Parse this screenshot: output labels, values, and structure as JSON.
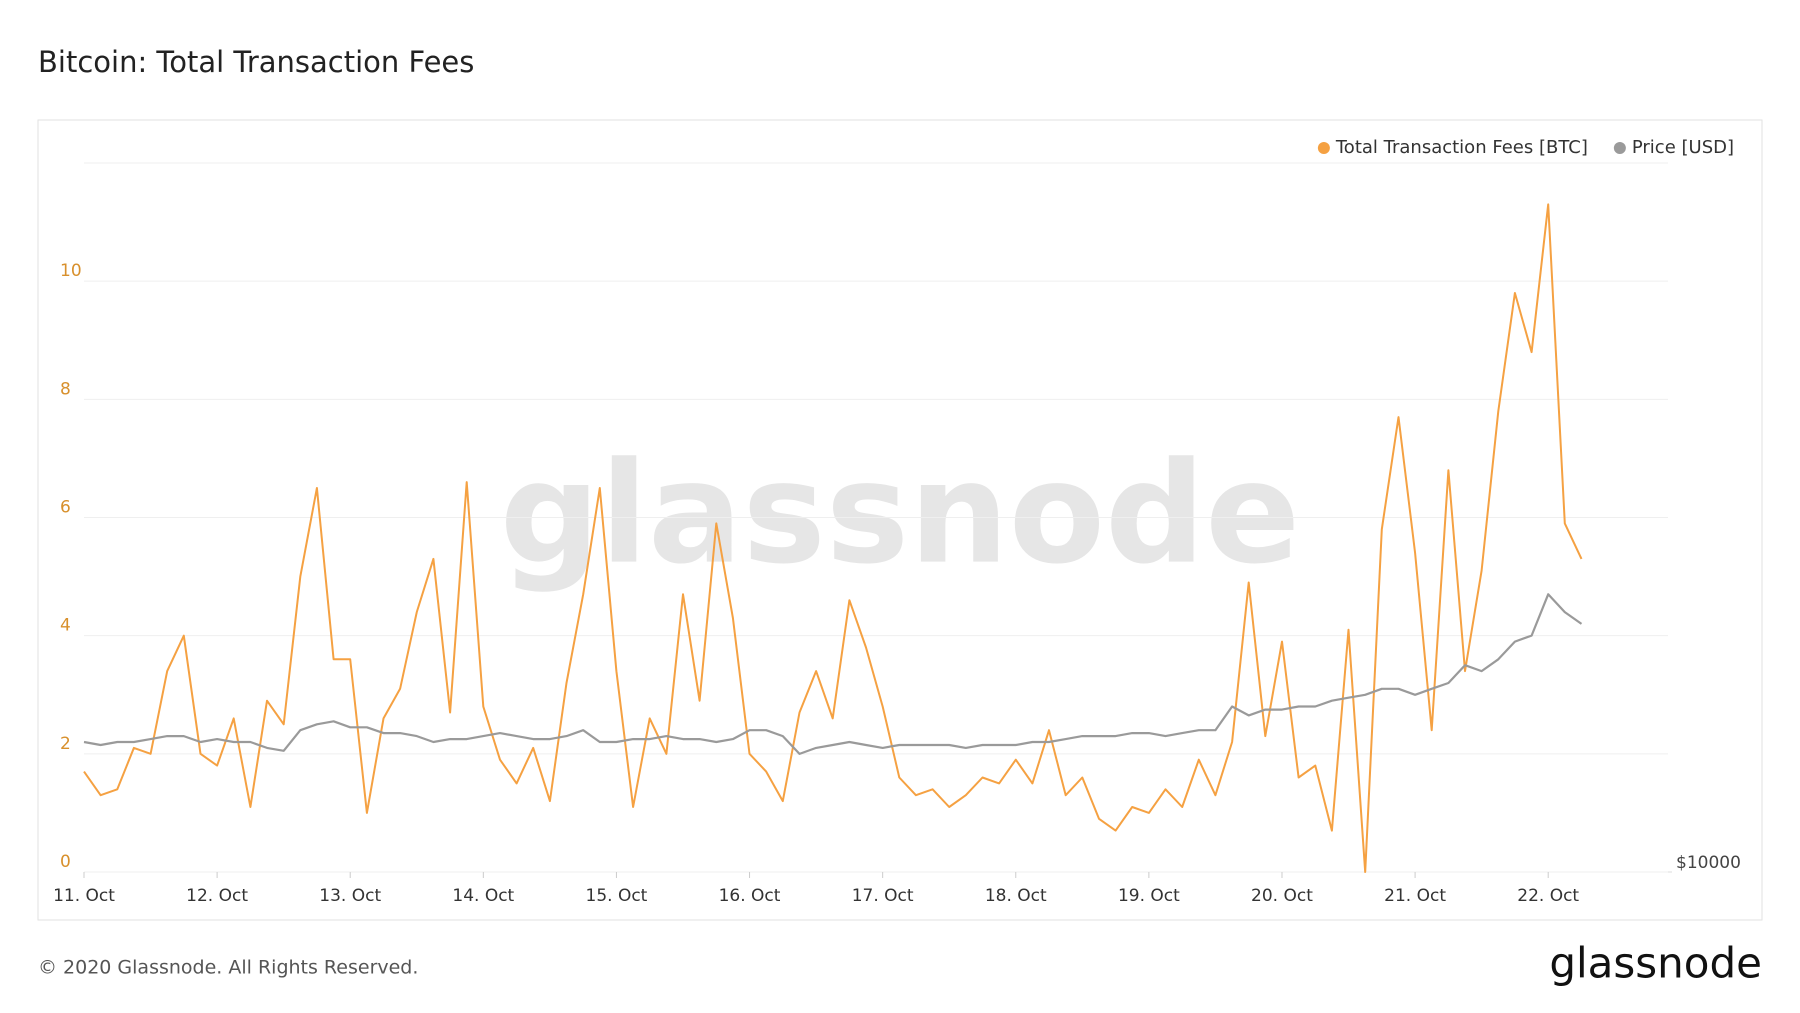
{
  "chart_data": {
    "type": "line",
    "title": "Bitcoin: Total Transaction Fees",
    "x": [
      0,
      0.125,
      0.25,
      0.375,
      0.5,
      0.625,
      0.75,
      0.875,
      1,
      1.125,
      1.25,
      1.375,
      1.5,
      1.625,
      1.75,
      1.875,
      2,
      2.125,
      2.25,
      2.375,
      2.5,
      2.625,
      2.75,
      2.875,
      3,
      3.125,
      3.25,
      3.375,
      3.5,
      3.625,
      3.75,
      3.875,
      4,
      4.125,
      4.25,
      4.375,
      4.5,
      4.625,
      4.75,
      4.875,
      5,
      5.125,
      5.25,
      5.375,
      5.5,
      5.625,
      5.75,
      5.875,
      6,
      6.125,
      6.25,
      6.375,
      6.5,
      6.625,
      6.75,
      6.875,
      7,
      7.125,
      7.25,
      7.375,
      7.5,
      7.625,
      7.75,
      7.875,
      8,
      8.125,
      8.25,
      8.375,
      8.5,
      8.625,
      8.75,
      8.875,
      9,
      9.125,
      9.25,
      9.375,
      9.5,
      9.625,
      9.75,
      9.875,
      10,
      10.125,
      10.25,
      10.375,
      10.5,
      10.625,
      10.75,
      10.875,
      11,
      11.125,
      11.25
    ],
    "series": [
      {
        "name": "Total Transaction Fees [BTC]",
        "color": "#f5a142",
        "values": [
          1.7,
          1.3,
          1.4,
          2.1,
          2.0,
          3.4,
          4.0,
          2.0,
          1.8,
          2.6,
          1.1,
          2.9,
          2.5,
          5.0,
          6.5,
          3.6,
          3.6,
          1.0,
          2.6,
          3.1,
          4.4,
          5.3,
          2.7,
          6.6,
          2.8,
          1.9,
          1.5,
          2.1,
          1.2,
          3.2,
          4.7,
          6.5,
          3.4,
          1.1,
          2.6,
          2.0,
          4.7,
          2.9,
          5.9,
          4.3,
          2.0,
          1.7,
          1.2,
          2.7,
          3.4,
          2.6,
          4.6,
          3.8,
          2.8,
          1.6,
          1.3,
          1.4,
          1.1,
          1.3,
          1.6,
          1.5,
          1.9,
          1.5,
          2.4,
          1.3,
          1.6,
          0.9,
          0.7,
          1.1,
          1.0,
          1.4,
          1.1,
          1.9,
          1.3,
          2.2,
          4.9,
          2.3,
          3.9,
          1.6,
          1.8,
          0.7,
          4.1,
          0.0,
          5.8,
          7.7,
          5.4,
          2.4,
          6.8,
          3.4,
          5.1,
          7.8,
          9.8,
          8.8,
          11.3,
          5.9,
          5.3
        ]
      },
      {
        "name": "Price [USD]",
        "color": "#9a9a9a",
        "axis": "y2",
        "values": [
          11467,
          11433,
          11467,
          11467,
          11500,
          11533,
          11533,
          11467,
          11500,
          11467,
          11467,
          11400,
          11367,
          11600,
          11667,
          11700,
          11633,
          11633,
          11567,
          11567,
          11533,
          11467,
          11500,
          11500,
          11533,
          11567,
          11533,
          11500,
          11500,
          11533,
          11600,
          11467,
          11467,
          11500,
          11500,
          11533,
          11500,
          11500,
          11467,
          11500,
          11600,
          11600,
          11533,
          11333,
          11400,
          11433,
          11467,
          11433,
          11400,
          11433,
          11433,
          11433,
          11433,
          11400,
          11433,
          11433,
          11433,
          11467,
          11467,
          11500,
          11533,
          11533,
          11533,
          11567,
          11567,
          11533,
          11567,
          11600,
          11600,
          11867,
          11767,
          11833,
          11833,
          11867,
          11867,
          11933,
          11967,
          12000,
          12067,
          12067,
          12000,
          12067,
          12133,
          12333,
          12267,
          12400,
          12600,
          12667,
          13133,
          12933,
          12800
        ]
      }
    ],
    "xlim": [
      0,
      11.9
    ],
    "xticks": [
      {
        "value": 0,
        "label": "11. Oct"
      },
      {
        "value": 1,
        "label": "12. Oct"
      },
      {
        "value": 2,
        "label": "13. Oct"
      },
      {
        "value": 3,
        "label": "14. Oct"
      },
      {
        "value": 4,
        "label": "15. Oct"
      },
      {
        "value": 5,
        "label": "16. Oct"
      },
      {
        "value": 6,
        "label": "17. Oct"
      },
      {
        "value": 7,
        "label": "18. Oct"
      },
      {
        "value": 8,
        "label": "19. Oct"
      },
      {
        "value": 9,
        "label": "20. Oct"
      },
      {
        "value": 10,
        "label": "21. Oct"
      },
      {
        "value": 11,
        "label": "22. Oct"
      }
    ],
    "ylim": [
      0,
      12
    ],
    "yticks": [
      0,
      2,
      4,
      6,
      8,
      10
    ],
    "y2lim": [
      10000,
      18000
    ],
    "y2ticks": [
      {
        "value": 10000,
        "label": "$10000"
      }
    ],
    "grid": true,
    "legend": "top-right"
  },
  "watermark": "glassnode",
  "footer": {
    "copyright": "© 2020 Glassnode. All Rights Reserved.",
    "logo": "glassnode"
  }
}
